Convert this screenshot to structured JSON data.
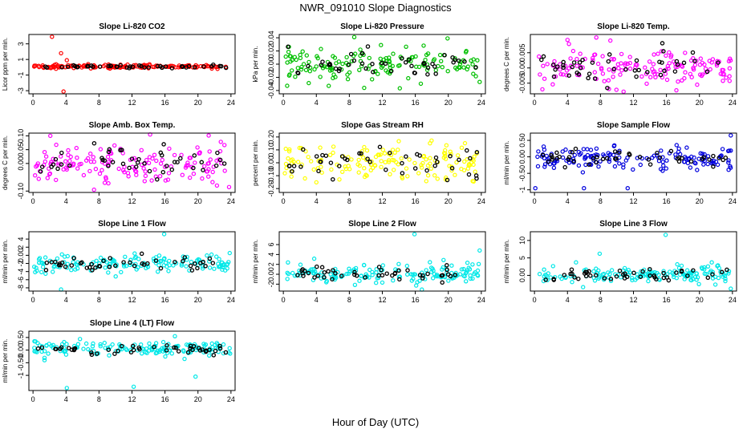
{
  "figure": {
    "title": "NWR_091010  Slope Diagnostics",
    "xlabel": "Hour of Day (UTC)"
  },
  "chart_data": [
    {
      "id": "p1",
      "type": "scatter",
      "title": "Slope Li-820 CO2",
      "ylabel": "Licor ppm per min.",
      "color": "#ff0000",
      "xlim": [
        -0.5,
        24.5
      ],
      "xticks": [
        0,
        4,
        8,
        12,
        16,
        20,
        24
      ],
      "ylim": [
        -3.4,
        4.2
      ],
      "yticks": [
        -3,
        -1,
        1,
        3
      ],
      "center": 0.1,
      "spread": 0.12,
      "outliers": [
        [
          2.3,
          3.9
        ],
        [
          3.7,
          -3.1
        ],
        [
          3.4,
          1.8
        ],
        [
          4.1,
          0.9
        ]
      ]
    },
    {
      "id": "p2",
      "type": "scatter",
      "title": "Slope Li-820 Pressure",
      "ylabel": "kPa per min.",
      "color": "#00c000",
      "xlim": [
        -0.5,
        24.5
      ],
      "xticks": [
        0,
        4,
        8,
        12,
        16,
        20,
        24
      ],
      "ylim": [
        -0.045,
        0.045
      ],
      "yticks": [
        -0.04,
        -0.02,
        0.0,
        0.02,
        0.04
      ],
      "center": 0.0,
      "spread": 0.013,
      "outliers": [
        [
          8.6,
          0.041
        ],
        [
          5.5,
          -0.033
        ],
        [
          9.8,
          -0.036
        ],
        [
          23.8,
          -0.027
        ]
      ]
    },
    {
      "id": "p3",
      "type": "scatter",
      "title": "Slope Li-820 Temp.",
      "ylabel": "degrees C per min.",
      "color": "#ff00ff",
      "xlim": [
        -0.5,
        24.5
      ],
      "xticks": [
        0,
        4,
        8,
        12,
        16,
        20,
        24
      ],
      "ylim": [
        -0.0085,
        0.011
      ],
      "yticks": [
        -0.005,
        0.0,
        0.005
      ],
      "center": 0.0005,
      "spread": 0.0032,
      "outliers": [
        [
          7.5,
          0.01
        ],
        [
          9.2,
          0.009
        ],
        [
          10.8,
          -0.0078
        ],
        [
          4.0,
          0.0092
        ]
      ]
    },
    {
      "id": "p4",
      "type": "scatter",
      "title": "Slope Amb. Box Temp.",
      "ylabel": "degrees C per min.",
      "color": "#ff00ff",
      "xlim": [
        -0.5,
        24.5
      ],
      "xticks": [
        0,
        4,
        8,
        12,
        16,
        20,
        24
      ],
      "ylim": [
        -0.105,
        0.11
      ],
      "yticks": [
        -0.1,
        0.0,
        0.05,
        0.1
      ],
      "center": 0.0,
      "spread": 0.035,
      "outliers": [
        [
          2.1,
          0.1
        ],
        [
          7.4,
          -0.095
        ],
        [
          14.2,
          0.105
        ],
        [
          22.3,
          -0.08
        ]
      ]
    },
    {
      "id": "p5",
      "type": "scatter",
      "title": "Slope Gas Stream RH",
      "ylabel": "percent per min.",
      "color": "#ffff00",
      "xlim": [
        -0.5,
        24.5
      ],
      "xticks": [
        0,
        4,
        8,
        12,
        16,
        20,
        24
      ],
      "ylim": [
        -0.23,
        0.23
      ],
      "yticks": [
        -0.2,
        -0.1,
        0.0,
        0.1,
        0.2
      ],
      "center": 0.0,
      "spread": 0.075,
      "outliers": []
    },
    {
      "id": "p6",
      "type": "scatter",
      "title": "Slope Sample Flow",
      "ylabel": "ml/min per min.",
      "color": "#0000dd",
      "xlim": [
        -0.5,
        24.5
      ],
      "xticks": [
        0,
        4,
        8,
        12,
        16,
        20,
        24
      ],
      "ylim": [
        -1.08,
        0.72
      ],
      "yticks": [
        -1.0,
        -0.5,
        0.0,
        0.5
      ],
      "center": -0.05,
      "spread": 0.17,
      "outliers": [
        [
          0.1,
          -0.95
        ],
        [
          6.0,
          -0.95
        ],
        [
          11.3,
          -0.95
        ],
        [
          23.8,
          0.65
        ]
      ]
    },
    {
      "id": "p7",
      "type": "scatter",
      "title": "Slope Line 1 Flow",
      "ylabel": "ml/min per min.",
      "color": "#00e8e8",
      "xlim": [
        -0.5,
        24.5
      ],
      "xticks": [
        0,
        4,
        8,
        12,
        16,
        20,
        24
      ],
      "ylim": [
        -8.8,
        5.8
      ],
      "yticks": [
        -8,
        -6,
        -4,
        -2,
        0,
        2,
        4
      ],
      "center": -2.0,
      "spread": 1.1,
      "outliers": [
        [
          15.9,
          5.2
        ],
        [
          3.4,
          -8.4
        ]
      ]
    },
    {
      "id": "p8",
      "type": "scatter",
      "title": "Slope Line 2 Flow",
      "ylabel": "ml/min per min.",
      "color": "#00e8e8",
      "xlim": [
        -0.5,
        24.5
      ],
      "xticks": [
        0,
        4,
        8,
        12,
        16,
        20,
        24
      ],
      "ylim": [
        -3.4,
        8.6
      ],
      "yticks": [
        -2,
        0,
        2,
        4,
        6
      ],
      "center": 0.2,
      "spread": 0.9,
      "outliers": [
        [
          15.9,
          8.1
        ],
        [
          16.8,
          -3.1
        ],
        [
          23.8,
          4.8
        ]
      ]
    },
    {
      "id": "p9",
      "type": "scatter",
      "title": "Slope Line 3 Flow",
      "ylabel": "ml/min per min.",
      "color": "#00e8e8",
      "xlim": [
        -0.5,
        24.5
      ],
      "xticks": [
        0,
        4,
        8,
        12,
        16,
        20,
        24
      ],
      "ylim": [
        -4.5,
        12.5
      ],
      "yticks": [
        0,
        5,
        10
      ],
      "center": 0.2,
      "spread": 1.2,
      "outliers": [
        [
          15.9,
          11.6
        ],
        [
          7.9,
          6.2
        ],
        [
          23.8,
          -3.8
        ]
      ]
    },
    {
      "id": "p10",
      "type": "scatter",
      "title": "Slope Line 4 (LT) Flow",
      "ylabel": "ml/min per min.",
      "color": "#00e8e8",
      "xlim": [
        -0.5,
        24.5
      ],
      "xticks": [
        0,
        4,
        8,
        12,
        16,
        20,
        24
      ],
      "ylim": [
        -1.6,
        0.75
      ],
      "yticks": [
        -1.0,
        -0.5,
        0.0,
        0.5
      ],
      "center": 0.05,
      "spread": 0.14,
      "outliers": [
        [
          4.1,
          -1.5
        ],
        [
          12.2,
          -1.45
        ],
        [
          19.7,
          -1.05
        ],
        [
          17.2,
          0.55
        ]
      ]
    }
  ]
}
